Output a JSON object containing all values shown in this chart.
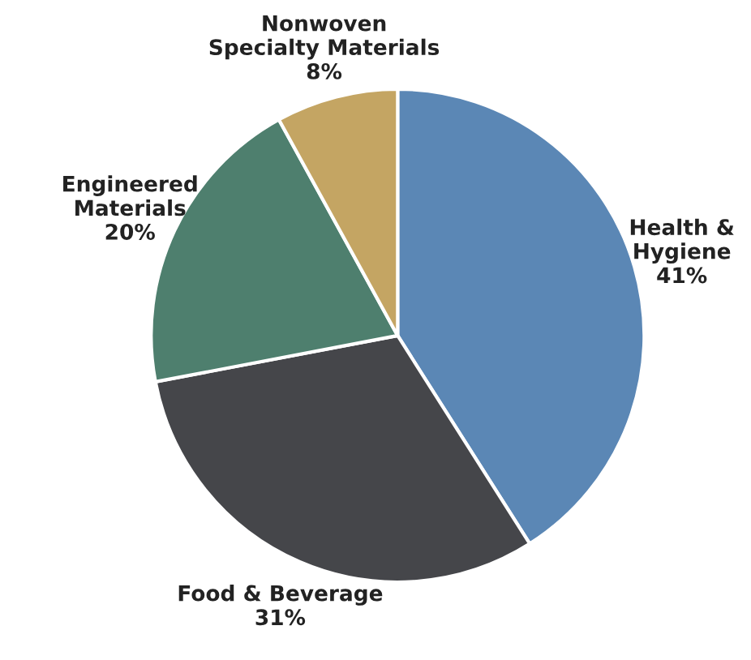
{
  "chart_data": {
    "type": "pie",
    "categories": [
      "Health &\nHygiene",
      "Food & Beverage",
      "Engineered\nMaterials",
      "Nonwoven\nSpecialty Materials"
    ],
    "values": [
      41,
      31,
      20,
      8
    ],
    "value_labels": [
      "41%",
      "31%",
      "20%",
      "8%"
    ],
    "colors": [
      "#5b87b5",
      "#45464a",
      "#4e7f6e",
      "#c4a563"
    ]
  }
}
